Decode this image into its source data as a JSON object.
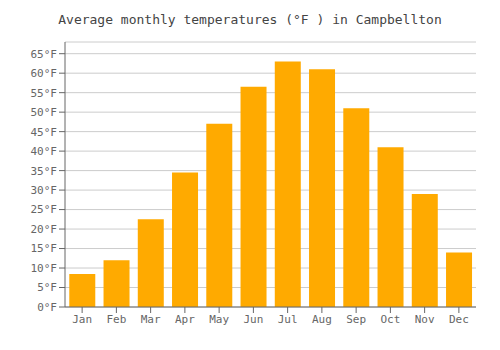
{
  "chart_data": {
    "type": "bar",
    "title": "Average monthly temperatures (°F ) in Campbellton",
    "categories": [
      "Jan",
      "Feb",
      "Mar",
      "Apr",
      "May",
      "Jun",
      "Jul",
      "Aug",
      "Sep",
      "Oct",
      "Nov",
      "Dec"
    ],
    "values": [
      8.5,
      12,
      22.5,
      34.5,
      47,
      56.5,
      63,
      61,
      51,
      41,
      29,
      14
    ],
    "color": "#FFAA00",
    "ylim": [
      0,
      68
    ],
    "yticks": [
      {
        "value": 0,
        "label": "0°F"
      },
      {
        "value": 5,
        "label": "5°F"
      },
      {
        "value": 10,
        "label": "10°F"
      },
      {
        "value": 15,
        "label": "15°F"
      },
      {
        "value": 20,
        "label": "20°F"
      },
      {
        "value": 25,
        "label": "25°F"
      },
      {
        "value": 30,
        "label": "30°F"
      },
      {
        "value": 35,
        "label": "35°F"
      },
      {
        "value": 40,
        "label": "40°F"
      },
      {
        "value": 45,
        "label": "45°F"
      },
      {
        "value": 50,
        "label": "50°F"
      },
      {
        "value": 55,
        "label": "55°F"
      },
      {
        "value": 60,
        "label": "60°F"
      },
      {
        "value": 65,
        "label": "65°F"
      }
    ],
    "grid": true
  }
}
